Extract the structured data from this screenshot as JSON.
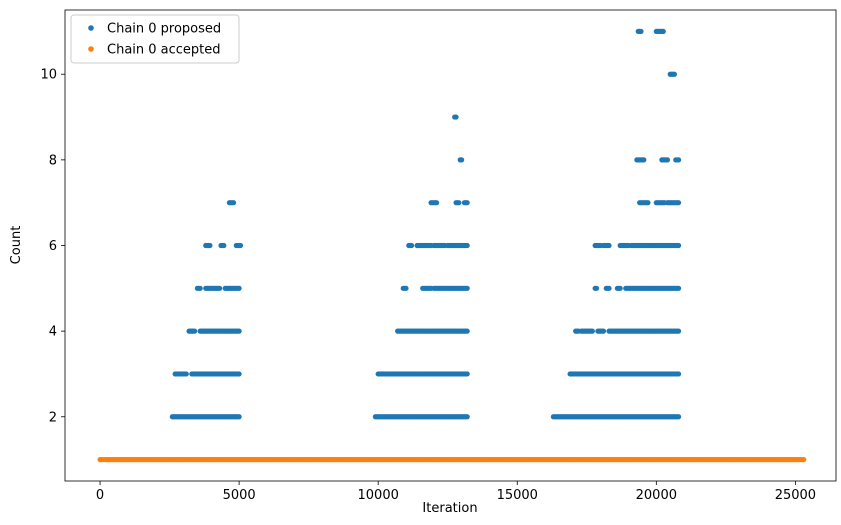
{
  "chart_data": {
    "type": "scatter",
    "title": "",
    "xlabel": "Iteration",
    "ylabel": "Count",
    "xlim": [
      -1260,
      26460
    ],
    "ylim": [
      0.5,
      11.5
    ],
    "xticks": [
      0,
      5000,
      10000,
      15000,
      20000,
      25000
    ],
    "xtick_labels": [
      "0",
      "5000",
      "10000",
      "15000",
      "20000",
      "25000"
    ],
    "yticks": [
      2,
      4,
      6,
      8,
      10
    ],
    "ytick_labels": [
      "2",
      "4",
      "6",
      "8",
      "10"
    ],
    "grid": false,
    "legend_position": "top-left",
    "series": [
      {
        "name": "Chain 0 proposed",
        "color": "#1f77b4",
        "clusters": [
          {
            "y": 2,
            "ranges": [
              [
                2600,
                5030
              ]
            ]
          },
          {
            "y": 3,
            "ranges": [
              [
                2700,
                3100
              ],
              [
                3300,
                5030
              ]
            ]
          },
          {
            "y": 4,
            "ranges": [
              [
                3200,
                3400
              ],
              [
                3600,
                5030
              ]
            ]
          },
          {
            "y": 5,
            "ranges": [
              [
                3500,
                3600
              ],
              [
                3800,
                4300
              ],
              [
                4500,
                5000
              ]
            ]
          },
          {
            "y": 6,
            "ranges": [
              [
                3800,
                3950
              ],
              [
                4350,
                4450
              ],
              [
                4900,
                5050
              ]
            ]
          },
          {
            "y": 7,
            "ranges": [
              [
                4650,
                4800
              ]
            ]
          },
          {
            "y": 2,
            "ranges": [
              [
                9900,
                13200
              ]
            ]
          },
          {
            "y": 3,
            "ranges": [
              [
                10000,
                13200
              ]
            ]
          },
          {
            "y": 4,
            "ranges": [
              [
                10700,
                13200
              ]
            ]
          },
          {
            "y": 5,
            "ranges": [
              [
                10900,
                11000
              ],
              [
                11600,
                11900
              ],
              [
                12000,
                13200
              ]
            ]
          },
          {
            "y": 6,
            "ranges": [
              [
                11100,
                11200
              ],
              [
                11400,
                11900
              ],
              [
                12000,
                12400
              ],
              [
                12500,
                13200
              ]
            ]
          },
          {
            "y": 7,
            "ranges": [
              [
                11900,
                12100
              ],
              [
                12800,
                12900
              ],
              [
                13100,
                13200
              ]
            ]
          },
          {
            "y": 8,
            "ranges": [
              [
                12950,
                13000
              ]
            ]
          },
          {
            "y": 9,
            "ranges": [
              [
                12750,
                12800
              ]
            ]
          },
          {
            "y": 2,
            "ranges": [
              [
                16300,
                20800
              ]
            ]
          },
          {
            "y": 3,
            "ranges": [
              [
                16900,
                20800
              ]
            ]
          },
          {
            "y": 4,
            "ranges": [
              [
                17100,
                17200
              ],
              [
                17300,
                17700
              ],
              [
                17900,
                18100
              ],
              [
                18300,
                20800
              ]
            ]
          },
          {
            "y": 5,
            "ranges": [
              [
                17800,
                17850
              ],
              [
                18200,
                18300
              ],
              [
                18600,
                18700
              ],
              [
                18900,
                20800
              ]
            ]
          },
          {
            "y": 6,
            "ranges": [
              [
                17800,
                18000
              ],
              [
                18100,
                18300
              ],
              [
                18700,
                19000
              ],
              [
                19100,
                20800
              ]
            ]
          },
          {
            "y": 7,
            "ranges": [
              [
                19400,
                19700
              ],
              [
                20000,
                20300
              ],
              [
                20400,
                20800
              ]
            ]
          },
          {
            "y": 8,
            "ranges": [
              [
                19300,
                19550
              ],
              [
                20200,
                20400
              ],
              [
                20700,
                20800
              ]
            ]
          },
          {
            "y": 10,
            "ranges": [
              [
                20500,
                20650
              ]
            ]
          },
          {
            "y": 11,
            "ranges": [
              [
                19350,
                19450
              ],
              [
                20000,
                20250
              ]
            ]
          }
        ]
      },
      {
        "name": "Chain 0 accepted",
        "color": "#ff7f0e",
        "clusters": [
          {
            "y": 1,
            "ranges": [
              [
                0,
                25300
              ]
            ]
          }
        ]
      }
    ]
  }
}
